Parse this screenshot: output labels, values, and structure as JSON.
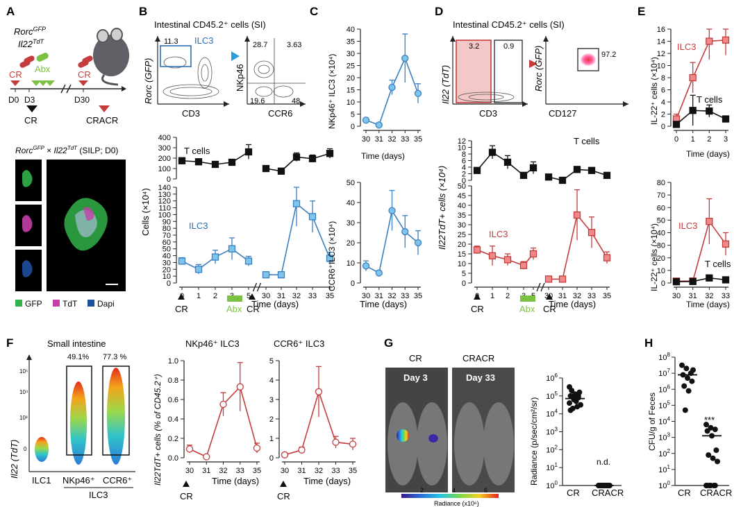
{
  "panels": {
    "A": "A",
    "B": "B",
    "C": "C",
    "D": "D",
    "E": "E",
    "F": "F",
    "G": "G",
    "H": "H"
  },
  "colors": {
    "ilc3_blue": "#3a7fc1",
    "ilc3_blue_fill": "#7fc4ea",
    "red": "#c43c3c",
    "red_fill": "#f08a8a",
    "black": "#111111",
    "abx_green": "#7cc242",
    "gfp": "#31b24a",
    "tdt": "#c63fa8",
    "dapi": "#1d4f9c"
  },
  "panelA": {
    "line1": "Rorc",
    "line1_sup": "GFP",
    "line2": "Il22",
    "line2_sup": "TdT",
    "cr1": "CR",
    "abx": "Abx",
    "cr2": "CR",
    "d0": "D0",
    "d3": "D3",
    "d30": "D30",
    "cr_below": "CR",
    "cracr_below": "CRACR",
    "micro_title_a": "Rorc",
    "micro_title_sup1": "GFP",
    "micro_title_x": " × ",
    "micro_title_b": "Il22",
    "micro_title_sup2": "TdT",
    "micro_title_tail": " (SILP; D0)",
    "legend_gfp": "GFP",
    "legend_tdt": "TdT",
    "legend_dapi": "Dapi"
  },
  "panelB": {
    "title": "Intestinal CD45.2⁺ cells (SI)",
    "flow1": {
      "gate_val": "11.3",
      "gate_label": "ILC3",
      "xlabel": "CD3",
      "ylabel": "Rorc (GFP)"
    },
    "flow2": {
      "q_tl": "28.7",
      "q_tr": "3.63",
      "q_bl": "19.6",
      "q_br": "48",
      "xlabel": "CCR6",
      "ylabel": "NKp46"
    },
    "ylabel": "Cells (×10⁴)",
    "xlabel": "Time (days)",
    "series_T_label": "T cells",
    "series_ILC3_label": "ILC3",
    "cr1": "CR",
    "abx": "Abx",
    "cr2": "CR"
  },
  "panelC": {
    "ylabel_top": "NKp46⁺ ILC3 (×10⁴)",
    "ylabel_bot": "CCR6⁺ILC3 (×10⁴)",
    "xlabel": "Time (days)"
  },
  "panelD": {
    "title": "Intestinal CD45.2⁺ cells (SI)",
    "flow1": {
      "val_left": "3.2",
      "val_right": "0.9",
      "xlabel": "CD3",
      "ylabel": "Il22 (TdT)"
    },
    "flow2": {
      "val": "97.2",
      "xlabel": "CD127",
      "ylabel": "Rorc (GFP)"
    },
    "ylabel": "Il22TdT+ cells (×10⁴)",
    "xlabel": "Time (days)",
    "series_T_label": "T cells",
    "series_ILC3_label": "ILC3",
    "cr1": "CR",
    "abx": "Abx",
    "cr2": "CR"
  },
  "panelE": {
    "ylabel": "IL-22⁺ cells (×10⁴)",
    "ilc3": "ILC3",
    "tcells": "T cells",
    "ilc3_b": "ILC3",
    "tcells_b": "T cells",
    "xlabel": "Time (days)"
  },
  "panelF": {
    "title": "Small intestine",
    "pct1": "49.1%",
    "pct2": "77.3 %",
    "cat1": "ILC1",
    "cat2": "NKp46⁺",
    "cat3": "CCR6⁺",
    "group": "ILC3",
    "ylabel": "Il22 (TdT)",
    "yticks": [
      "10⁵",
      "10⁴",
      "10³",
      "0"
    ],
    "plot1_title": "NKp46⁺ ILC3",
    "plot2_title": "CCR6⁺ ILC3",
    "ylabel_plot": "Il22TdT+ cells (% of CD45.2⁺)",
    "xlabel": "Time (days)",
    "cr": "CR"
  },
  "panelG": {
    "lab_cr": "CR",
    "lab_cracr": "CRACR",
    "day3": "Day 3",
    "day33": "Day 33",
    "colorbar_ticks": [
      "2",
      "4",
      "6"
    ],
    "colorbar_label": "Radiance (x10⁶)",
    "ylabel": "Radiance (p/sec/cm²/sr)",
    "x1": "CR",
    "x2": "CRACR",
    "nd": "n.d."
  },
  "panelH": {
    "ylabel": "CFU/g of Feces",
    "x1": "CR",
    "x2": "CRACR",
    "sig": "***"
  },
  "chart_data": [
    {
      "id": "B-T",
      "type": "line",
      "title": "T cells",
      "categories": [
        "0",
        "1",
        "2",
        "3",
        "5",
        "30",
        "31",
        "32",
        "33",
        "35"
      ],
      "values": [
        175,
        165,
        140,
        160,
        260,
        100,
        75,
        210,
        195,
        245
      ],
      "errors": [
        15,
        12,
        18,
        20,
        70,
        20,
        10,
        40,
        35,
        45
      ],
      "ylim": [
        0,
        400
      ],
      "yticks": [
        0,
        100,
        200,
        300,
        400
      ],
      "ylabel": "Cells (×10⁴)"
    },
    {
      "id": "B-ILC3",
      "type": "line",
      "title": "ILC3",
      "categories": [
        "0",
        "1",
        "2",
        "3",
        "5",
        "30",
        "31",
        "32",
        "33",
        "35"
      ],
      "values": [
        32,
        20,
        38,
        50,
        32,
        12,
        12,
        116,
        97,
        36
      ],
      "errors": [
        5,
        7,
        10,
        16,
        7,
        4,
        3,
        33,
        23,
        9
      ],
      "ylim": [
        0,
        140
      ],
      "yticks": [
        0,
        10,
        20,
        30,
        40,
        50,
        60,
        70,
        80,
        90,
        100,
        110,
        120,
        130,
        140
      ],
      "xlabel": "Time (days)"
    },
    {
      "id": "C-NKp46",
      "type": "line",
      "categories": [
        "30",
        "31",
        "32",
        "33",
        "35"
      ],
      "values": [
        2.5,
        0.5,
        16,
        28,
        13.5
      ],
      "errors": [
        0.5,
        0.3,
        3,
        10,
        4
      ],
      "ylim": [
        0,
        40
      ],
      "yticks": [
        0,
        5,
        10,
        15,
        20,
        25,
        30,
        35,
        40
      ],
      "ylabel": "NKp46⁺ ILC3 (×10⁴)"
    },
    {
      "id": "C-CCR6",
      "type": "line",
      "categories": [
        "30",
        "31",
        "32",
        "33",
        "35"
      ],
      "values": [
        8.5,
        5,
        36,
        25.5,
        20
      ],
      "errors": [
        2.5,
        1,
        10,
        8,
        6
      ],
      "ylim": [
        0,
        50
      ],
      "yticks": [
        0,
        10,
        20,
        30,
        40,
        50
      ],
      "ylabel": "CCR6⁺ILC3 (×10⁴)",
      "xlabel": "Time (days)"
    },
    {
      "id": "D-T",
      "type": "line",
      "title": "T cells",
      "categories": [
        "0",
        "1",
        "2",
        "3",
        "5",
        "30",
        "31",
        "32",
        "33",
        "35"
      ],
      "values": [
        3,
        8.5,
        5.5,
        1.5,
        3.8,
        1,
        0,
        3.3,
        3,
        1.5
      ],
      "errors": [
        0.8,
        2,
        2,
        0.5,
        1.8,
        0.4,
        0.3,
        0.8,
        0.5,
        0.4
      ],
      "ylim": [
        0,
        12
      ],
      "yticks": [
        0,
        2,
        4,
        6,
        8,
        10,
        12
      ]
    },
    {
      "id": "D-ILC3",
      "type": "line",
      "title": "ILC3",
      "categories": [
        "0",
        "1",
        "2",
        "3",
        "5",
        "30",
        "31",
        "32",
        "33",
        "35"
      ],
      "values": [
        17,
        14,
        12,
        9,
        15,
        2,
        2,
        35,
        26,
        13
      ],
      "errors": [
        2,
        5,
        3,
        2,
        3,
        1,
        1,
        13,
        8,
        3
      ],
      "ylim": [
        0,
        50
      ],
      "yticks": [
        0,
        5,
        10,
        15,
        20,
        25,
        30,
        35,
        40,
        45,
        50
      ],
      "xlabel": "Time (days)",
      "ylabel": "Il22TdT+ cells (×10⁴)"
    },
    {
      "id": "E-top",
      "type": "line",
      "categories": [
        "0",
        "1",
        "2",
        "3"
      ],
      "series": [
        {
          "name": "ILC3",
          "values": [
            1.2,
            8,
            14,
            14.2
          ],
          "errors": [
            0.8,
            2.5,
            3,
            2.5
          ]
        },
        {
          "name": "T cells",
          "values": [
            0.3,
            2.6,
            2.5,
            1.2
          ],
          "errors": [
            0.3,
            2.5,
            1,
            0.3
          ]
        }
      ],
      "ylim": [
        0,
        16
      ],
      "yticks": [
        0,
        2,
        4,
        6,
        8,
        10,
        12,
        14,
        16
      ],
      "ylabel": "IL-22⁺ cells (×10⁴)"
    },
    {
      "id": "E-bottom",
      "type": "line",
      "categories": [
        "30",
        "31",
        "32",
        "33"
      ],
      "series": [
        {
          "name": "ILC3",
          "values": [
            1.5,
            1.5,
            49,
            31
          ],
          "errors": [
            0.5,
            0.5,
            18,
            9
          ]
        },
        {
          "name": "T cells",
          "values": [
            1,
            1.2,
            4,
            2.5
          ],
          "errors": [
            0.3,
            0.3,
            1,
            0.5
          ]
        }
      ],
      "ylim": [
        0,
        80
      ],
      "yticks": [
        0,
        10,
        20,
        30,
        40,
        50,
        60,
        70,
        80
      ],
      "ylabel": "IL-22⁺ cells (×10⁴)",
      "xlabel": "Time (days)"
    },
    {
      "id": "F-NKp46",
      "type": "line",
      "title": "NKp46⁺ ILC3",
      "categories": [
        "30",
        "31",
        "32",
        "33",
        "35"
      ],
      "values": [
        0.09,
        0.01,
        0.55,
        0.73,
        0.1
      ],
      "errors": [
        0.04,
        0.01,
        0.12,
        0.25,
        0.05
      ],
      "ylim": [
        0,
        1.0
      ],
      "yticks": [
        0,
        0.2,
        0.4,
        0.6,
        0.8,
        1.0
      ],
      "ylabel": "Il22TdT+ cells (% of CD45.2⁺)"
    },
    {
      "id": "F-CCR6",
      "type": "line",
      "title": "CCR6⁺ ILC3",
      "categories": [
        "30",
        "31",
        "32",
        "33",
        "35"
      ],
      "values": [
        0.15,
        0.4,
        3.4,
        0.8,
        0.7
      ],
      "errors": [
        0.1,
        0.15,
        1.3,
        0.3,
        0.3
      ],
      "ylim": [
        0,
        5
      ],
      "yticks": [
        0,
        1,
        2,
        3,
        4,
        5
      ],
      "xlabel": "Time (days)"
    },
    {
      "id": "G",
      "type": "scatter",
      "categories": [
        "CR",
        "CRACR"
      ],
      "points_log10": [
        [
          4.6,
          4.8,
          4.9,
          5.0,
          5.1,
          5.2,
          5.3,
          4.7,
          4.5,
          4.3,
          4.4,
          5.5,
          4.9,
          5.0,
          4.2
        ],
        [
          0,
          0,
          0,
          0,
          0,
          0,
          0,
          0,
          0,
          0,
          0,
          0,
          0,
          0,
          0
        ]
      ],
      "median_log10": [
        4.85,
        0
      ],
      "ylim_log10": [
        0,
        6
      ],
      "ylabel": "Radiance (p/sec/cm²/sr)"
    },
    {
      "id": "H",
      "type": "scatter",
      "categories": [
        "CR",
        "CRACR"
      ],
      "points_log10": [
        [
          7.5,
          7.3,
          7.0,
          6.9,
          6.7,
          6.5,
          6.2,
          5.9,
          7.2,
          4.7
        ],
        [
          3.8,
          3.6,
          3.5,
          3.4,
          3.1,
          2.2,
          1.9,
          1.7,
          1.5,
          0,
          0,
          0,
          0,
          0,
          0
        ]
      ],
      "median_log10": [
        6.9,
        3.1
      ],
      "ylim_log10": [
        0,
        8
      ],
      "ylabel": "CFU/g of Feces"
    }
  ]
}
